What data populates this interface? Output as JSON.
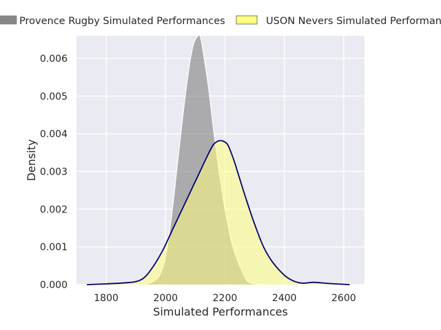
{
  "chart_data": {
    "type": "area",
    "title": "",
    "xlabel": "Simulated Performances",
    "ylabel": "Density",
    "xlim": [
      1700,
      2670
    ],
    "ylim": [
      0,
      0.0066
    ],
    "xticks": [
      1800,
      2000,
      2200,
      2400,
      2600
    ],
    "yticks": [
      0.0,
      0.001,
      0.002,
      0.003,
      0.004,
      0.005,
      0.006
    ],
    "xtick_labels": [
      "1800",
      "2000",
      "2200",
      "2400",
      "2600"
    ],
    "ytick_labels": [
      "0.000",
      "0.001",
      "0.002",
      "0.003",
      "0.004",
      "0.005",
      "0.006"
    ],
    "grid": true,
    "legend_position": "top, above plot",
    "series": [
      {
        "name": "Provence Rugby Simulated Performances",
        "fill_color": "#808080",
        "fill_opacity": 0.6,
        "line_color": "#ffffff",
        "x": [
          1915,
          1950,
          1980,
          2000,
          2020,
          2040,
          2060,
          2080,
          2095,
          2110,
          2118,
          2130,
          2145,
          2160,
          2170,
          2180,
          2190,
          2200,
          2210,
          2220,
          2235,
          2255,
          2275,
          2300,
          2330
        ],
        "y": [
          0.0,
          5e-05,
          0.00025,
          0.00075,
          0.0018,
          0.0032,
          0.0046,
          0.0058,
          0.0064,
          0.0066,
          0.00655,
          0.006,
          0.0052,
          0.0042,
          0.0036,
          0.003,
          0.0025,
          0.002,
          0.0016,
          0.0012,
          0.0008,
          0.0004,
          0.0001,
          2e-05,
          0.0
        ]
      },
      {
        "name": "USON Nevers Simulated Performances",
        "fill_color": "#ffff80",
        "fill_opacity": 0.55,
        "line_color": "#00006e",
        "x": [
          1735,
          1800,
          1850,
          1900,
          1930,
          1960,
          1990,
          2020,
          2050,
          2080,
          2110,
          2140,
          2160,
          2175,
          2185,
          2195,
          2210,
          2230,
          2250,
          2270,
          2300,
          2330,
          2360,
          2400,
          2430,
          2460,
          2500,
          2550,
          2620
        ],
        "y": [
          0.0,
          2e-05,
          4e-05,
          8e-05,
          0.0002,
          0.0005,
          0.0009,
          0.0014,
          0.0019,
          0.0024,
          0.0029,
          0.0034,
          0.0037,
          0.0038,
          0.00382,
          0.0038,
          0.0037,
          0.0033,
          0.0028,
          0.0023,
          0.0016,
          0.001,
          0.0006,
          0.00025,
          0.0001,
          4e-05,
          6e-05,
          3e-05,
          0.0
        ]
      }
    ]
  }
}
